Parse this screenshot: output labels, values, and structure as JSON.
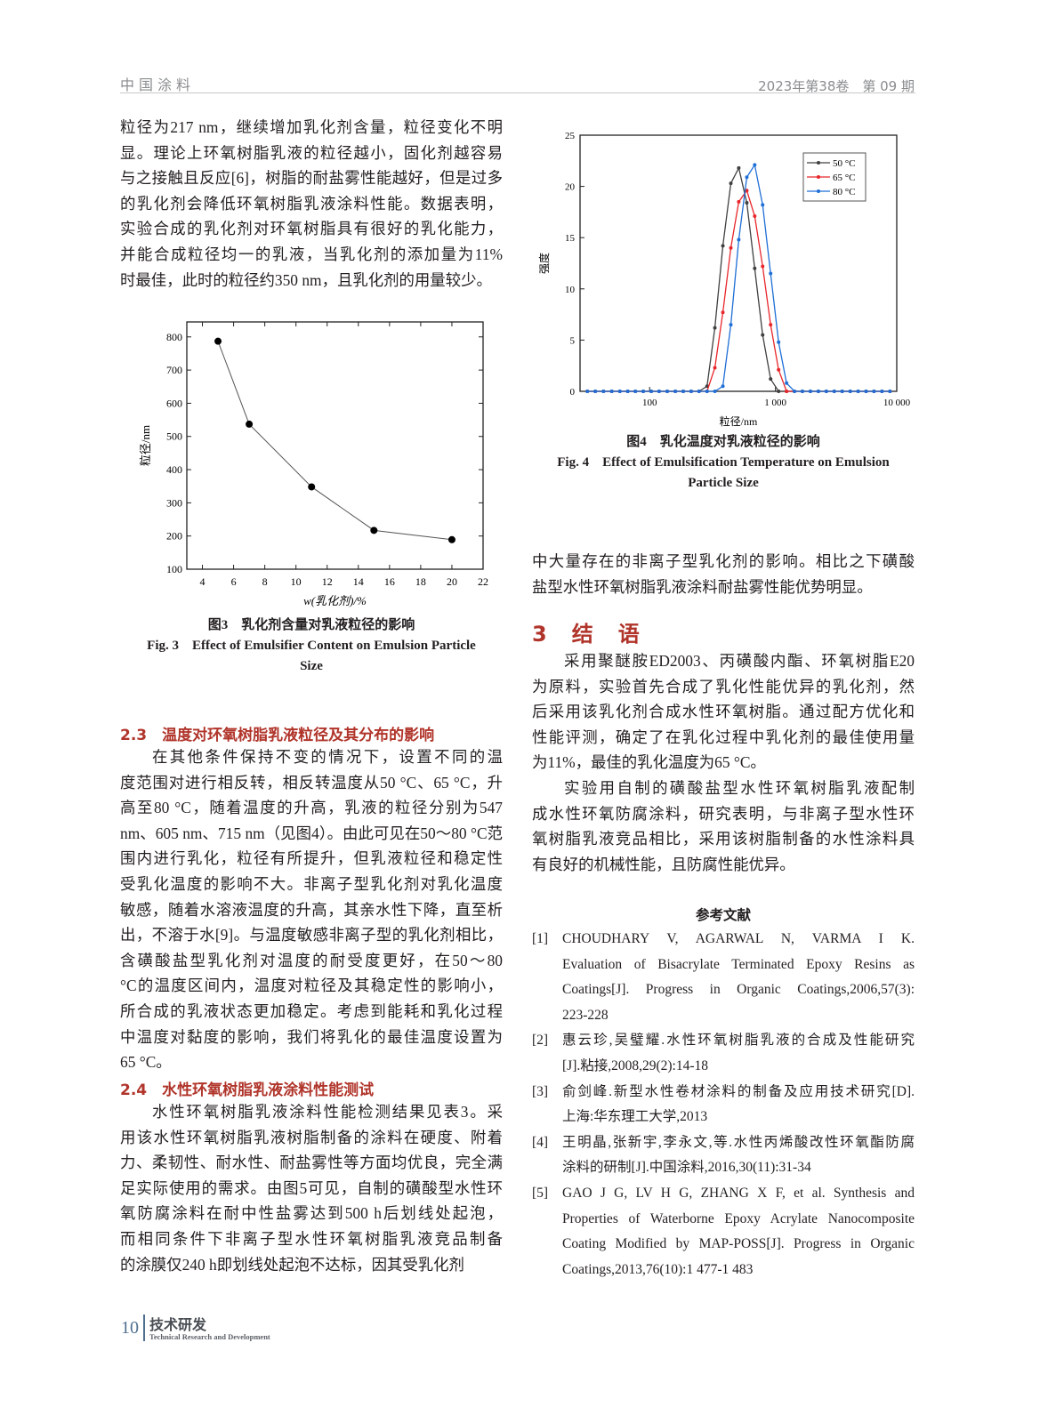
{
  "header": {
    "journal": "中国涂料",
    "issue": "2023年第38卷　第 09 期"
  },
  "left": {
    "para1": [
      "粒径为217 nm，继续增加乳化剂含量，粒径变化不明",
      "显。理论上环氧树脂乳液的粒径越小，固化剂越容易",
      "与之接触且反应[6]，树脂的耐盐雾性能越好，但是过多",
      "的乳化剂会降低环氧树脂乳液涂料性能。数据表明，",
      "实验合成的乳化剂对环氧树脂具有很好的乳化能力，",
      "并能合成粒径均一的乳液，当乳化剂的添加量为11%",
      "时最佳，此时的粒径约350 nm，且乳化剂的用量较少。"
    ],
    "fig3_caption_cn": "图3　乳化剂含量对乳液粒径的影响",
    "fig3_caption_en": [
      "Fig. 3　Effect of Emulsifier Content on Emulsion Particle",
      "Size"
    ],
    "sec23_title": "2.3　温度对环氧树脂乳液粒径及其分布的影响",
    "sec23": [
      "在其他条件保持不变的情况下，设置不同的温",
      "度范围对进行相反转，相反转温度从50 °C、65 °C，升",
      "高至80 °C，随着温度的升高，乳液的粒径分别为547",
      "nm、605 nm、715 nm（见图4）。由此可见在50～80 °C范",
      "围内进行乳化，粒径有所提升，但乳液粒径和稳定性",
      "受乳化温度的影响不大。非离子型乳化剂对乳化温度",
      "敏感，随着水溶液温度的升高，其亲水性下降，直至析",
      "出，不溶于水[9]。与温度敏感非离子型的乳化剂相比，",
      "含磺酸盐型乳化剂对温度的耐受度更好，在50～80",
      "°C的温度区间内，温度对粒径及其稳定性的影响小，",
      "所合成的乳液状态更加稳定。考虑到能耗和乳化过程",
      "中温度对黏度的影响，我们将乳化的最佳温度设置为",
      "65 °C。"
    ],
    "sec24_title": "2.4　水性环氧树脂乳液涂料性能测试",
    "sec24": [
      "水性环氧树脂乳液涂料性能检测结果见表3。采",
      "用该水性环氧树脂乳液树脂制备的涂料在硬度、附着",
      "力、柔韧性、耐水性、耐盐雾性等方面均优良，完全满",
      "足实际使用的需求。由图5可见，自制的磺酸型水性环",
      "氧防腐涂料在耐中性盐雾达到500 h后划线处起泡，",
      "而相同条件下非离子型水性环氧树脂乳液竞品制备",
      "的涂膜仅240 h即划线处起泡不达标，因其受乳化剂"
    ]
  },
  "right": {
    "fig4_caption_cn": "图4　乳化温度对乳液粒径的影响",
    "fig4_caption_en": [
      "Fig. 4　Effect of Emulsification Temperature on Emulsion",
      "Particle Size"
    ],
    "para_cont": [
      "中大量存在的非离子型乳化剂的影响。相比之下磺酸",
      "盐型水性环氧树脂乳液涂料耐盐雾性能优势明显。"
    ],
    "sec3_title": "3　结　语",
    "sec3_p1": [
      "采用聚醚胺ED2003、丙磺酸内酯、环氧树脂E20",
      "为原料，实验首先合成了乳化性能优异的乳化剂，然",
      "后采用该乳化剂合成水性环氧树脂。通过配方优化和",
      "性能评测，确定了在乳化过程中乳化剂的最佳使用量",
      "为11%，最佳的乳化温度为65 °C。"
    ],
    "sec3_p2": [
      "实验用自制的磺酸盐型水性环氧树脂乳液配制",
      "成水性环氧防腐涂料，研究表明，与非离子型水性环",
      "氧树脂乳液竞品相比，采用该树脂制备的水性涂料具",
      "有良好的机械性能，且防腐性能优异。"
    ],
    "refs_title": "参考文献",
    "refs": [
      {
        "num": "[1]",
        "lines": [
          "CHOUDHARY V, AGARWAL N, VARMA I K.",
          "Evaluation of Bisacrylate Terminated Epoxy Resins as",
          "Coatings[J]. Progress in Organic Coatings,2006,57(3):",
          "223-228"
        ]
      },
      {
        "num": "[2]",
        "lines": [
          "惠云珍,吴璧耀.水性环氧树脂乳液的合成及性能研究",
          "[J].粘接,2008,29(2):14-18"
        ]
      },
      {
        "num": "[3]",
        "lines": [
          "俞剑峰.新型水性卷材涂料的制备及应用技术研究[D].",
          "上海:华东理工大学,2013"
        ]
      },
      {
        "num": "[4]",
        "lines": [
          "王明晶,张新宇,李永文,等.水性丙烯酸改性环氧酯防腐",
          "涂料的研制[J].中国涂料,2016,30(11):31-34"
        ]
      },
      {
        "num": "[5]",
        "lines": [
          "GAO J G, LV H G, ZHANG X F, et al. Synthesis and",
          "Properties of Waterborne Epoxy Acrylate Nanocomposite",
          "Coating Modified by MAP-POSS[J]. Progress in Organic",
          "Coatings,2013,76(10):1 477-1 483"
        ]
      }
    ]
  },
  "footer": {
    "page": "10",
    "section_cn": "技术研发",
    "section_en": "Technical Research and Development"
  },
  "chart_data": [
    {
      "type": "line",
      "xlabel": "w(乳化剂)/%",
      "ylabel": "粒径/nm",
      "x": [
        5,
        7,
        11,
        15,
        20
      ],
      "values": [
        787,
        537,
        348,
        217,
        189
      ],
      "xlim": [
        3,
        22
      ],
      "ylim": [
        100,
        845
      ],
      "xticks": [
        4,
        6,
        8,
        10,
        12,
        14,
        16,
        18,
        20,
        22
      ],
      "yticks": [
        100,
        200,
        300,
        400,
        500,
        600,
        700,
        800
      ],
      "grid": false,
      "colors": {
        "line": "#555555",
        "marker": "#000000"
      }
    },
    {
      "type": "line",
      "xscale": "log",
      "xlabel": "粒径/nm",
      "ylabel": "强度",
      "xlim": [
        28,
        9200
      ],
      "ylim": [
        0,
        25
      ],
      "xticks": [
        {
          "v": 100,
          "label": "100"
        },
        {
          "v": 1000,
          "label": "1 000"
        },
        {
          "v": 10000,
          "label": "10 000"
        }
      ],
      "yticks": [
        0,
        5,
        10,
        15,
        20,
        25
      ],
      "grid": false,
      "legend": "top-right",
      "x": [
        32,
        37,
        43,
        50,
        58,
        67,
        77,
        89,
        103,
        119,
        138,
        160,
        185,
        214,
        247,
        286,
        330,
        382,
        442,
        511,
        592,
        684,
        791,
        915,
        1059,
        1225,
        1416,
        1637,
        1895,
        2193,
        2535,
        2931,
        3388,
        3926,
        4539,
        5248,
        6067,
        7015,
        8128
      ],
      "series": [
        {
          "name": "50 °C",
          "color": "#404040",
          "values": [
            0,
            0,
            0,
            0,
            0,
            0,
            0,
            0,
            0,
            0,
            0,
            0,
            0,
            0,
            0,
            0.5,
            6.2,
            14.2,
            20.3,
            21.8,
            18.4,
            12.0,
            5.5,
            1.2,
            0,
            0,
            0,
            0,
            0,
            0,
            0,
            0,
            0,
            0,
            0,
            0,
            0,
            0,
            0
          ]
        },
        {
          "name": "65 °C",
          "color": "#e8262b",
          "values": [
            0,
            0,
            0,
            0,
            0,
            0,
            0,
            0,
            0,
            0,
            0,
            0,
            0,
            0,
            0,
            0,
            2.3,
            7.7,
            14.0,
            18.5,
            19.6,
            17.1,
            12.2,
            6.5,
            2.1,
            0,
            0,
            0,
            0,
            0,
            0,
            0,
            0,
            0,
            0,
            0,
            0,
            0,
            0
          ]
        },
        {
          "name": "80 °C",
          "color": "#1f6fd6",
          "values": [
            0,
            0,
            0,
            0,
            0,
            0,
            0,
            0,
            0,
            0,
            0,
            0,
            0,
            0,
            0,
            0,
            0,
            0.5,
            6.5,
            14.8,
            20.9,
            22.1,
            18.2,
            11.5,
            4.8,
            0.8,
            0,
            0,
            0,
            0,
            0,
            0,
            0,
            0,
            0,
            0,
            0,
            0,
            0
          ]
        }
      ]
    }
  ]
}
